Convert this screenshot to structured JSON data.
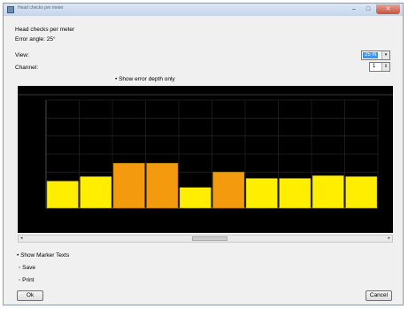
{
  "window": {
    "title": "Head checks per meter",
    "controls": {
      "minimize": "–",
      "maximize": "□",
      "close": "✕"
    }
  },
  "info": {
    "line1": "Head checks per meter",
    "line2": "Error angle: 25°"
  },
  "view": {
    "label": "View:",
    "value": "25 m"
  },
  "channel": {
    "label": "Channel:",
    "value": "1"
  },
  "show_error_depth_only": "Show error depth only",
  "chart_data": {
    "type": "bar",
    "values": [
      3,
      3.5,
      5,
      5,
      2.3,
      4,
      3.3,
      3.3,
      3.6,
      3.5
    ],
    "colors": [
      "#ffee00",
      "#ffee00",
      "#f39a0e",
      "#f39a0e",
      "#ffee00",
      "#f39a0e",
      "#ffee00",
      "#ffee00",
      "#ffee00",
      "#ffee00"
    ],
    "ylim": [
      0,
      12
    ],
    "grid": true
  },
  "scroll": {
    "left": "◂",
    "right": "▸"
  },
  "options": {
    "show_marker_texts": "Show Marker Texts",
    "save": "Save",
    "print": "Print"
  },
  "buttons": {
    "ok": "Ok",
    "cancel": "Cancel"
  }
}
